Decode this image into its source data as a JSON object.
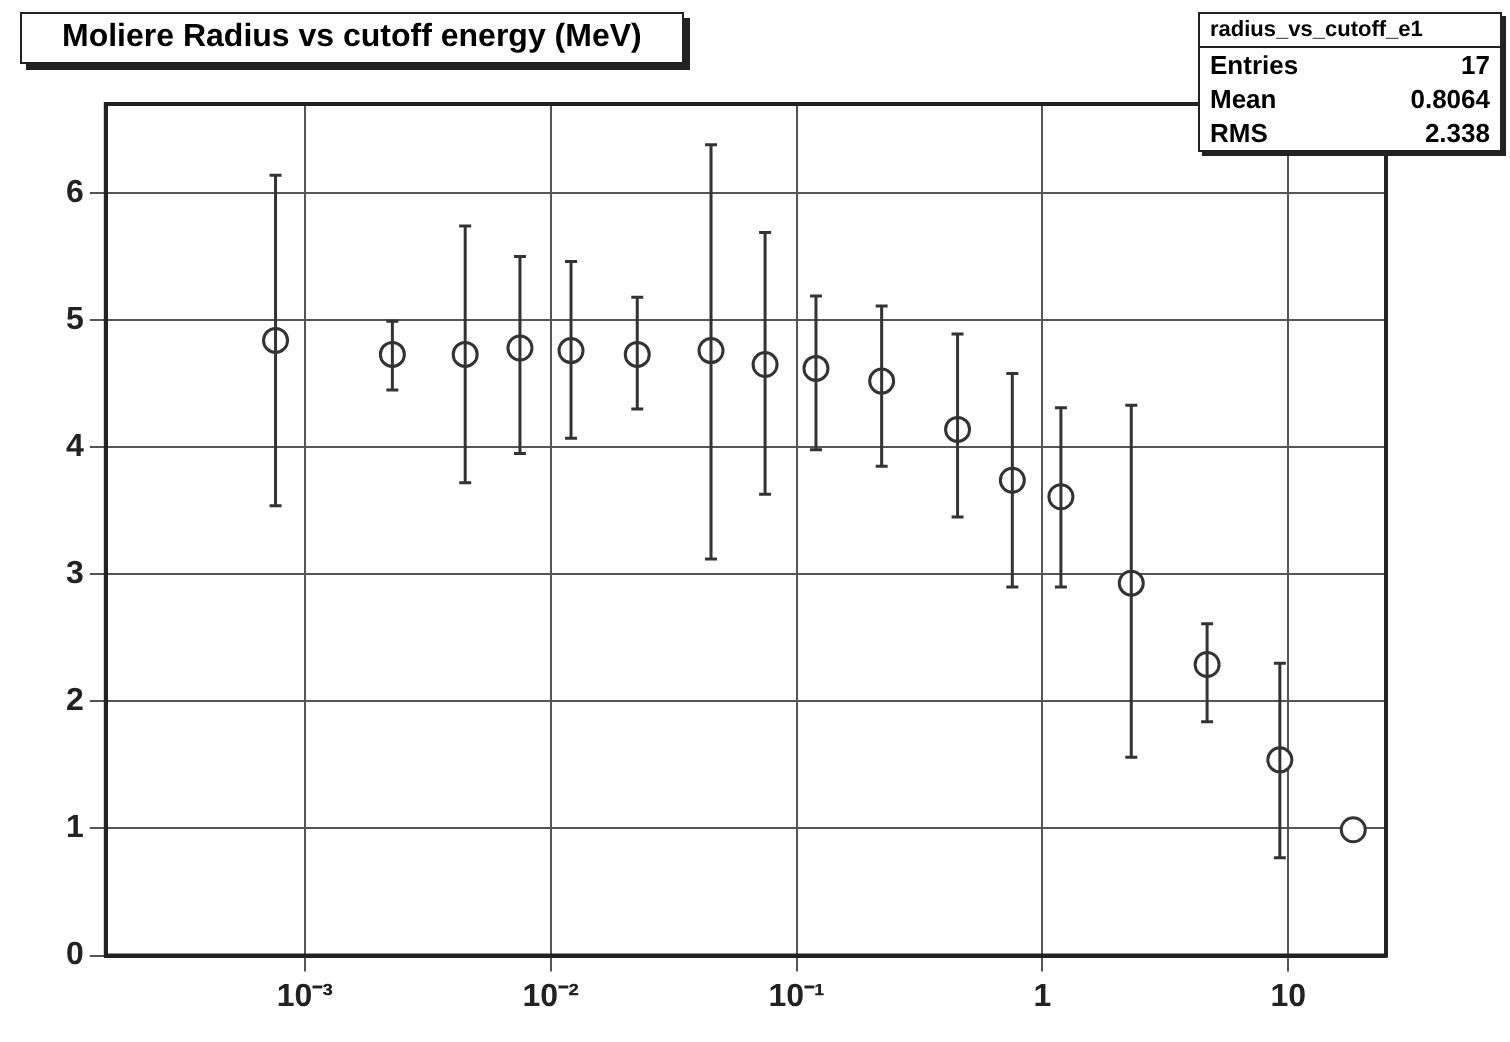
{
  "chart_data": {
    "type": "scatter",
    "title": "Moliere Radius vs cutoff energy (MeV)",
    "x": [
      0.00076,
      0.00227,
      0.00449,
      0.0075,
      0.0121,
      0.0225,
      0.0449,
      0.0745,
      0.12,
      0.222,
      0.452,
      0.755,
      1.19,
      2.3,
      4.68,
      9.25,
      18.4
    ],
    "values": [
      4.84,
      4.73,
      4.73,
      4.78,
      4.76,
      4.73,
      4.76,
      4.65,
      4.62,
      4.52,
      4.14,
      3.74,
      3.61,
      2.93,
      2.29,
      1.54,
      0.99
    ],
    "errors": [
      [
        3.54,
        6.14
      ],
      [
        4.45,
        4.99
      ],
      [
        3.72,
        5.74
      ],
      [
        3.95,
        5.5
      ],
      [
        4.07,
        5.46
      ],
      [
        4.3,
        5.18
      ],
      [
        3.12,
        6.38
      ],
      [
        3.63,
        5.69
      ],
      [
        3.98,
        5.19
      ],
      [
        3.85,
        5.11
      ],
      [
        3.45,
        4.89
      ],
      [
        2.9,
        4.58
      ],
      [
        2.9,
        4.31
      ],
      [
        1.56,
        4.33
      ],
      [
        1.84,
        2.61
      ],
      [
        0.77,
        2.3
      ],
      null
    ],
    "color": "#333333",
    "marker": "circle",
    "log": "x",
    "grid": true,
    "xlim": [
      0.000155,
      25
    ],
    "xticks": [
      {
        "value": 0.001,
        "label": "10⁻³"
      },
      {
        "value": 0.01,
        "label": "10⁻²"
      },
      {
        "value": 0.1,
        "label": "10⁻¹"
      },
      1,
      10
    ],
    "ylim": [
      0,
      6.7
    ],
    "yticks": [
      0,
      1,
      2,
      3,
      4,
      5,
      6
    ],
    "annotations": [
      "radius_vs_cutoff_e1",
      "Entries",
      "17",
      "Mean",
      "0.8064",
      "RMS",
      "2.338"
    ]
  }
}
